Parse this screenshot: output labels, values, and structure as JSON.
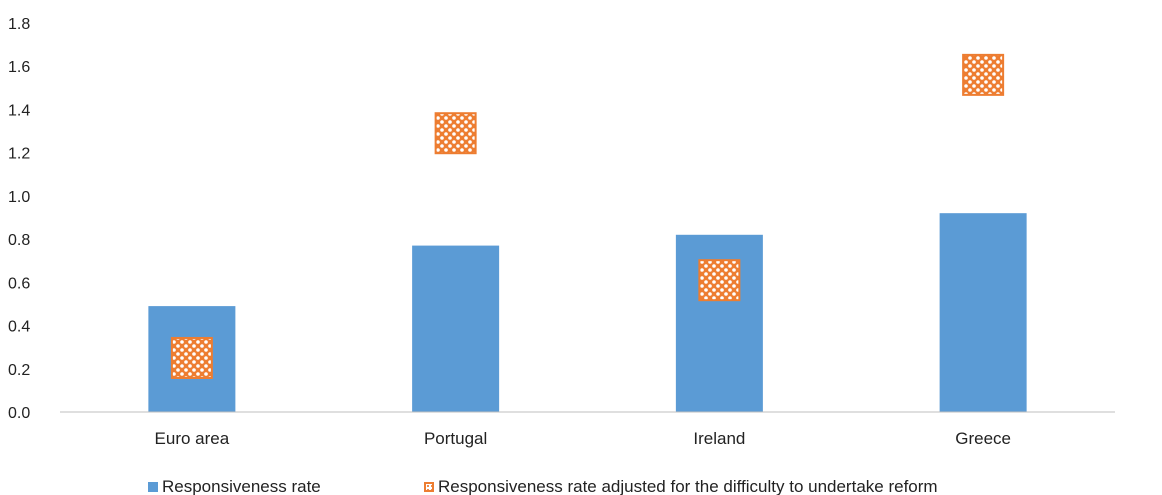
{
  "chart_data": {
    "type": "bar",
    "categories": [
      "Euro area",
      "Portugal",
      "Ireland",
      "Greece"
    ],
    "series": [
      {
        "name": "Responsiveness rate",
        "kind": "bar",
        "color": "#5B9BD5",
        "values": [
          0.49,
          0.77,
          0.82,
          0.92
        ]
      },
      {
        "name": "Responsiveness rate adjusted for the difficulty to undertake reform",
        "kind": "marker",
        "color": "#ED7D31",
        "values": [
          0.25,
          1.29,
          0.61,
          1.56
        ]
      }
    ],
    "title": "",
    "xlabel": "",
    "ylabel": "",
    "ylim": [
      0,
      1.8
    ],
    "yticks": [
      "0.0",
      "0.2",
      "0.4",
      "0.6",
      "0.8",
      "1.0",
      "1.2",
      "1.4",
      "1.6",
      "1.8"
    ],
    "grid": false,
    "legend_position": "bottom"
  }
}
